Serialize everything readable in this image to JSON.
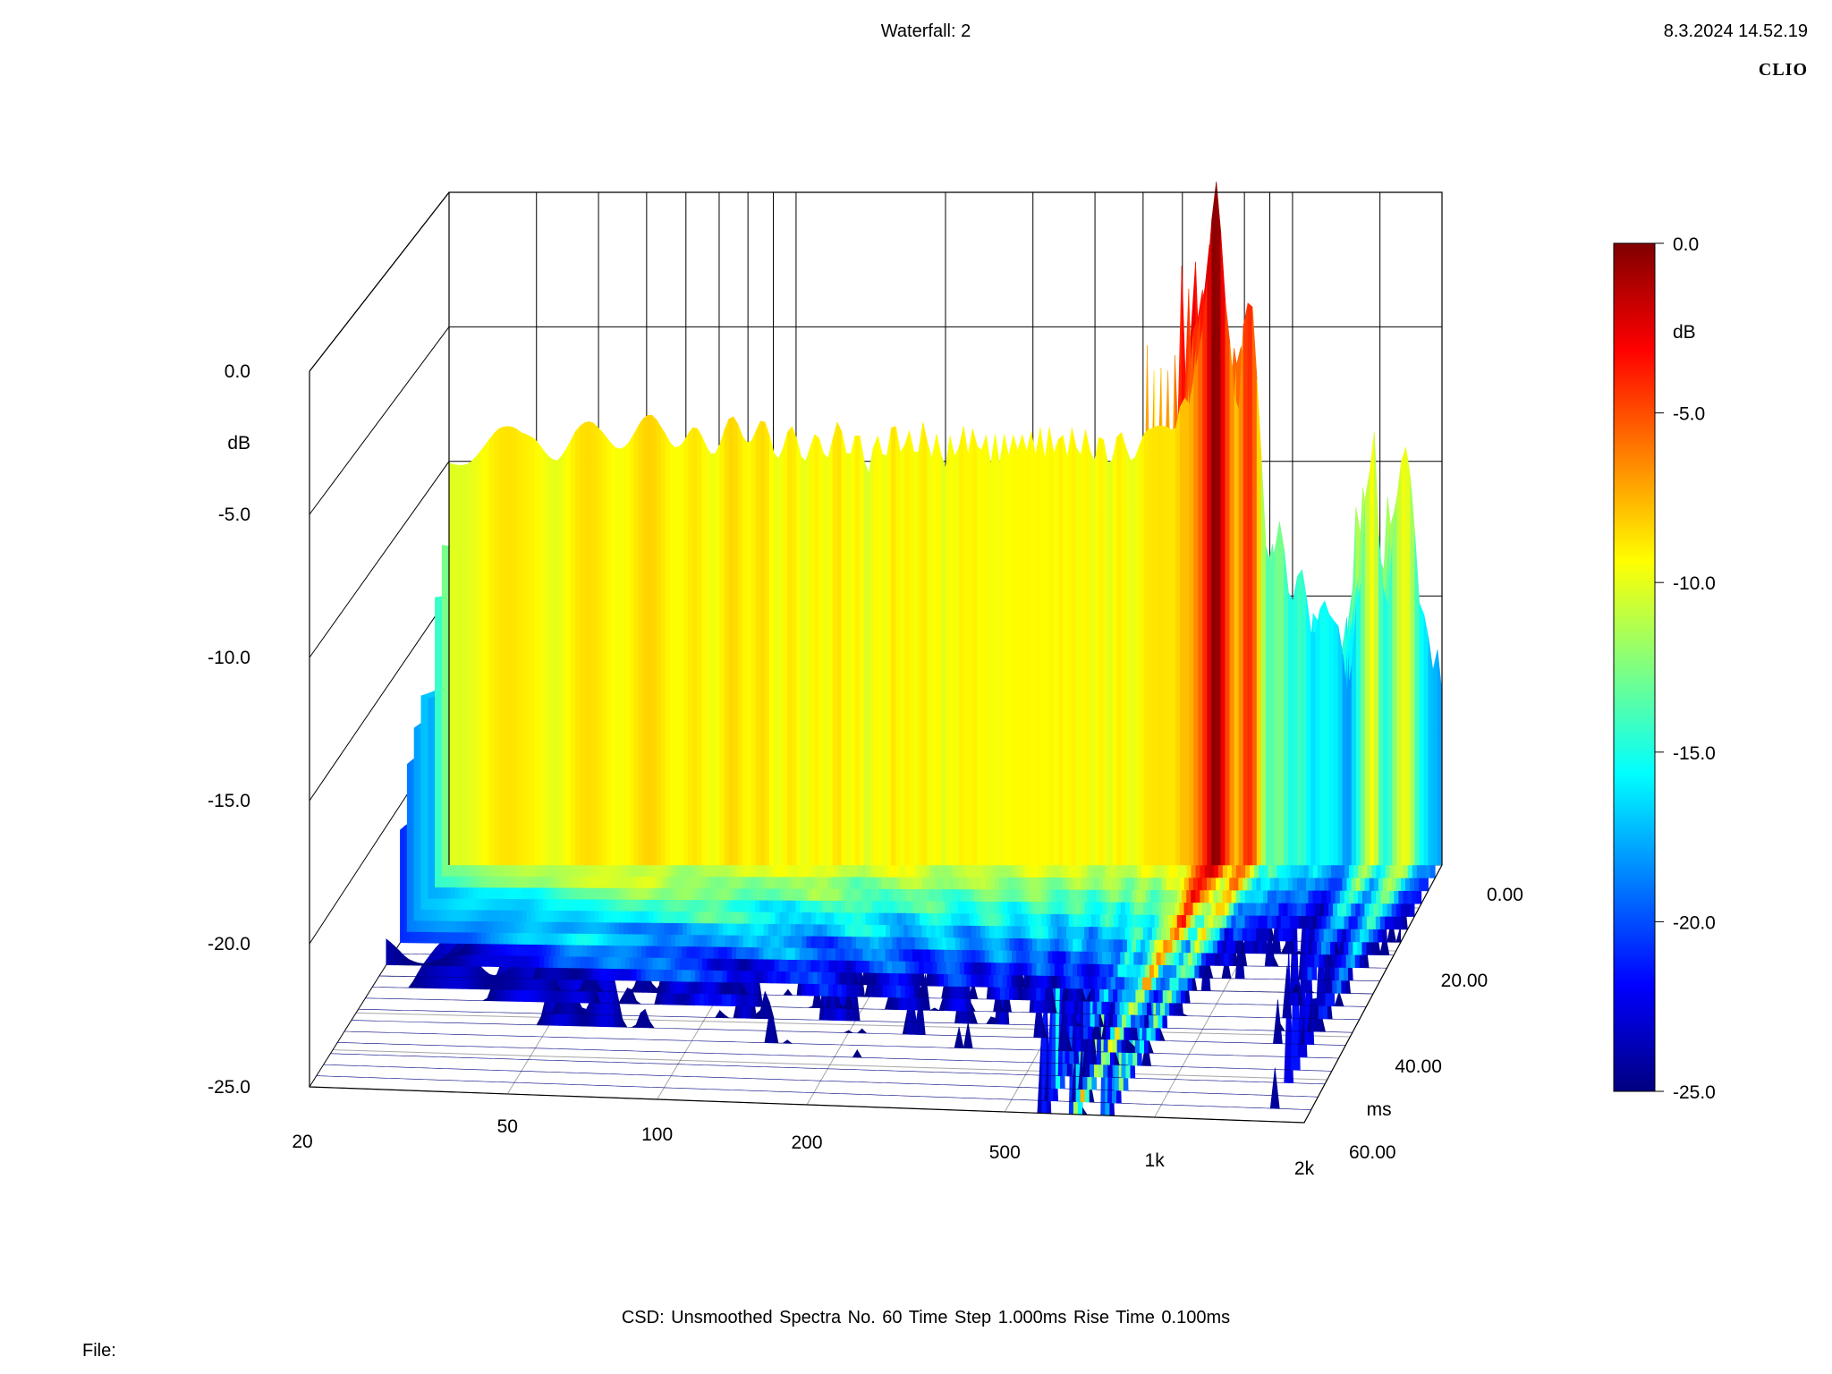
{
  "header": {
    "title": "Waterfall: 2",
    "timestamp": "8.3.2024 14.52.19",
    "brand": "CLIO"
  },
  "footer": {
    "settings": "CSD:   Unsmoothed   Spectra No. 60   Time Step 1.000ms   Rise Time 0.100ms",
    "file_label": "File:"
  },
  "chart_data": {
    "type": "waterfall",
    "title": "Waterfall: 2",
    "x_axis": {
      "scale": "log",
      "range": [
        20,
        2000
      ],
      "ticks": [
        "20",
        "50",
        "100",
        "200",
        "500",
        "1k",
        "2k"
      ],
      "tick_values": [
        20,
        50,
        100,
        200,
        500,
        1000,
        2000
      ]
    },
    "z_axis": {
      "label": "dB",
      "range": [
        -25,
        0
      ],
      "ticks": [
        "0.0",
        "-5.0",
        "-10.0",
        "-15.0",
        "-20.0",
        "-25.0"
      ],
      "tick_values": [
        0,
        -5,
        -10,
        -15,
        -20,
        -25
      ]
    },
    "t_axis": {
      "label": "ms",
      "range": [
        0,
        60
      ],
      "ticks": [
        "0.00",
        "20.00",
        "40.00",
        "60.00"
      ],
      "tick_values": [
        0,
        20,
        40,
        60
      ]
    },
    "colorbar": {
      "label": "dB",
      "range": [
        -25,
        0
      ],
      "ticks": [
        "0.0",
        "-5.0",
        "-10.0",
        "-15.0",
        "-20.0",
        "-25.0"
      ],
      "tick_values": [
        0,
        -5,
        -10,
        -15,
        -20,
        -25
      ],
      "stops": [
        "#000080",
        "#0000ff",
        "#0080ff",
        "#00ffff",
        "#80ff80",
        "#ffff00",
        "#ff8000",
        "#ff0000",
        "#800000"
      ]
    },
    "spectra_count": 60,
    "time_step_ms": 1.0,
    "rise_time_ms": 0.1,
    "initial_spectrum": {
      "freq_hz": [
        20,
        22,
        25,
        28,
        30,
        33,
        36,
        40,
        45,
        50,
        55,
        60,
        70,
        80,
        90,
        100,
        110,
        120,
        130,
        140,
        150,
        160,
        170,
        180,
        200,
        220,
        250,
        280,
        300,
        330,
        360,
        400,
        430,
        460,
        500,
        520,
        540,
        560,
        580,
        600,
        620,
        640,
        660,
        680,
        700,
        720,
        740,
        760,
        780,
        800,
        820,
        840,
        860,
        880,
        900,
        930,
        960,
        1000,
        1050,
        1100,
        1150,
        1200,
        1250,
        1300,
        1350,
        1400,
        1450,
        1500,
        1550,
        1600,
        1650,
        1700,
        1750,
        1800,
        1850,
        1900,
        1950,
        2000
      ],
      "db": [
        -9.5,
        -9.6,
        -9.2,
        -9.4,
        -9.1,
        -9.4,
        -9.0,
        -9.2,
        -8.9,
        -8.9,
        -8.6,
        -9.4,
        -9.1,
        -8.7,
        -9.3,
        -9.3,
        -9.6,
        -9.1,
        -9.3,
        -9.9,
        -9.4,
        -9.0,
        -9.5,
        -9.1,
        -9.8,
        -9.1,
        -9.6,
        -9.3,
        -9.3,
        -9.3,
        -9.3,
        -9.5,
        -9.6,
        -9.4,
        -9.4,
        -9.4,
        -9.0,
        -8.9,
        -9.1,
        -8.0,
        -8.5,
        -6.8,
        -4.5,
        -1.7,
        0.0,
        -1.8,
        -4.5,
        -8.0,
        -7.5,
        -5.0,
        -3.2,
        -5.5,
        -9.0,
        -12.5,
        -14.5,
        -12.0,
        -13.5,
        -15.0,
        -14.5,
        -16.5,
        -14.5,
        -16.0,
        -17.0,
        -18.5,
        -15.5,
        -12.0,
        -8.5,
        -13.0,
        -16.5,
        -12.0,
        -9.5,
        -8.8,
        -11.0,
        -15.0,
        -16.5,
        -17.0,
        -17.5,
        -18.0
      ]
    }
  }
}
